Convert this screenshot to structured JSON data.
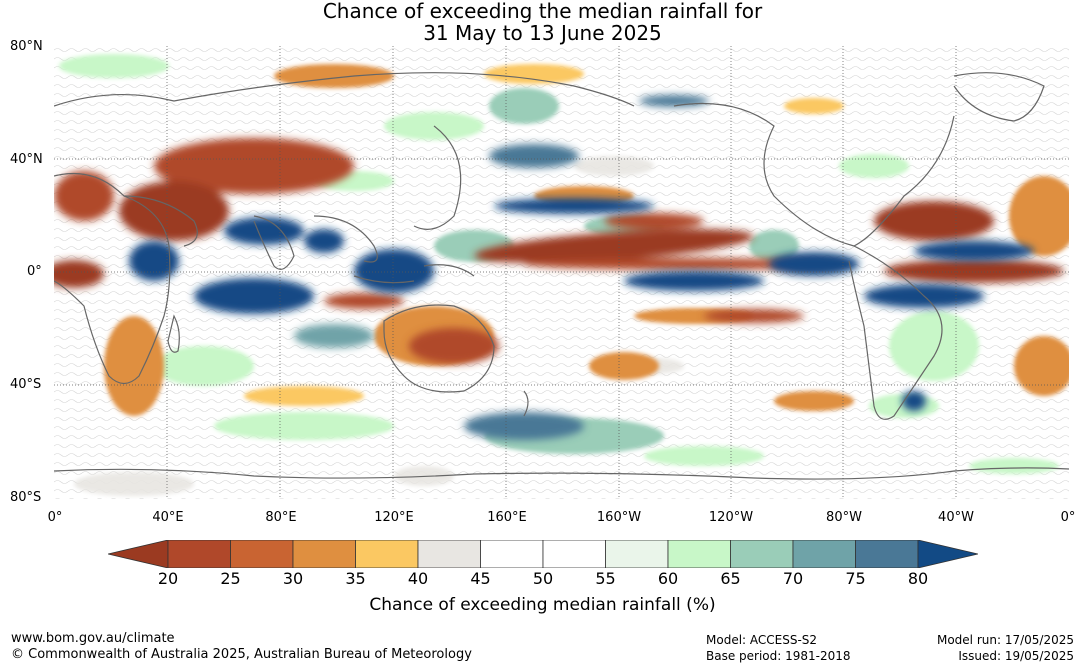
{
  "title": {
    "line1": "Chance of exceeding the median rainfall for",
    "line2": "31 May to 13 June 2025"
  },
  "map": {
    "lat_labels": [
      "80°N",
      "40°N",
      "0°",
      "40°S",
      "80°S"
    ],
    "lon_labels": [
      "0°",
      "40°E",
      "80°E",
      "120°E",
      "160°E",
      "160°W",
      "120°W",
      "80°W",
      "40°W",
      "0°"
    ]
  },
  "colorbar": {
    "ticks": [
      "20",
      "25",
      "30",
      "35",
      "40",
      "45",
      "50",
      "55",
      "60",
      "65",
      "70",
      "75",
      "80"
    ],
    "label": "Chance of exceeding median rainfall (%)",
    "colors": [
      "#9b3a21",
      "#b0482a",
      "#c96432",
      "#df8f40",
      "#fbc862",
      "#e8e6e2",
      "#ffffff",
      "#ffffff",
      "#eaf5ea",
      "#c8f7c8",
      "#9acdb8",
      "#6fa3a8",
      "#4a7896",
      "#124a85"
    ]
  },
  "footer": {
    "url": "www.bom.gov.au/climate",
    "copyright": "© Commonwealth of Australia 2025, Australian Bureau of Meteorology",
    "model": "Model: ACCESS-S2",
    "base_period": "Base period: 1981-2018",
    "model_run": "Model run: 17/05/2025",
    "issued": "Issued: 19/05/2025"
  }
}
